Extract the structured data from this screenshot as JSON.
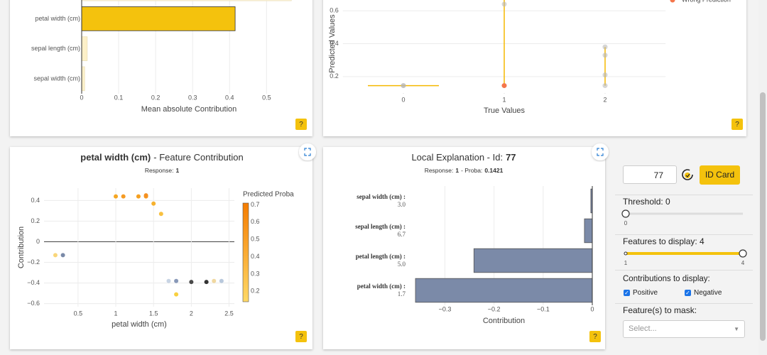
{
  "chart_data": [
    {
      "type": "bar",
      "orientation": "horizontal",
      "categories": [
        null,
        "petal width (cm)",
        "sepal length (cm)",
        "sepal width (cm)"
      ],
      "values": [
        0.567,
        0.415,
        0.015,
        0.008
      ],
      "colors": [
        "#fdf4dc",
        "#f4c20d",
        "#fdf0c8",
        "#fdf0c8"
      ],
      "xlim": [
        0,
        0.58
      ],
      "xticks": [
        0,
        0.1,
        0.2,
        0.3,
        0.4,
        0.5
      ],
      "xlabel": "Mean absolute Contribution",
      "grid": true
    },
    {
      "type": "scatter",
      "xlabel": "True Values",
      "ylabel": "Predicted Values",
      "xlim": [
        -0.6,
        2.6
      ],
      "xticks": [
        0,
        1,
        2
      ],
      "ylim": [
        0.1,
        0.7
      ],
      "yticks": [
        0.2,
        0.4,
        0.6
      ],
      "grid": true,
      "violins": {
        "color": "#f5b800",
        "x": [
          0,
          1,
          2
        ],
        "low": [
          0.145,
          0.145,
          0.145
        ],
        "high": [
          0.145,
          0.7,
          0.38
        ]
      },
      "series": [
        {
          "color": "#b5b5b5",
          "x": [
            0,
            0,
            1,
            2,
            2,
            2,
            2
          ],
          "y": [
            0.145,
            0.145,
            0.64,
            0.38,
            0.33,
            0.21,
            0.145
          ]
        },
        {
          "name": "Wrong Prediction",
          "color": "#f4764b",
          "x": [
            1
          ],
          "y": [
            0.145
          ]
        }
      ]
    },
    {
      "type": "scatter",
      "title": [
        "petal width (cm)",
        "- Feature Contribution"
      ],
      "subtitle": [
        "Response:",
        "1"
      ],
      "xlabel": "petal width (cm)",
      "ylabel": "Contribution",
      "xlim": [
        0.05,
        2.57
      ],
      "xticks": [
        0.5,
        1,
        {
          "value": 1.5,
          "label": "1.5"
        },
        2,
        {
          "value": 2.5,
          "label": "2.5"
        }
      ],
      "ylim": [
        -0.63,
        0.52
      ],
      "yticks": [
        {
          "value": -0.6,
          "label": "−0.6"
        },
        {
          "value": -0.4,
          "label": "−0.4"
        },
        {
          "value": -0.2,
          "label": "−0.2"
        },
        0,
        0.2,
        0.4
      ],
      "grid": true,
      "x": [
        1.0,
        1.1,
        1.3,
        1.4,
        1.4,
        1.5,
        1.6,
        0.2,
        0.3,
        1.7,
        1.8,
        1.8,
        2.0,
        2.2,
        2.3,
        2.4
      ],
      "y": [
        0.44,
        0.44,
        0.44,
        0.44,
        0.45,
        0.37,
        0.27,
        -0.13,
        -0.13,
        -0.38,
        -0.38,
        -0.51,
        -0.39,
        -0.39,
        -0.38,
        -0.38
      ],
      "colors": [
        "#f5a623",
        "#f59b23",
        "#f5a020",
        "#f59b23",
        "#f59020",
        "#f6b12e",
        "#f8c040",
        "#f9d67a",
        "#7a8aa8",
        "#c8d4e4",
        "#8898b8",
        "#f8d040",
        "#4a4a4a",
        "#333333",
        "#f0d8a0",
        "#b8c8dc"
      ],
      "colorbar": {
        "label": "Predicted Proba",
        "lim": [
          0.14,
          0.71
        ],
        "ticks": [
          0.2,
          0.3,
          0.4,
          0.5,
          0.6,
          0.7
        ],
        "colorscale": [
          "#ffd966",
          "#f57c00"
        ]
      }
    },
    {
      "type": "bar",
      "orientation": "horizontal",
      "title": [
        "Local Explanation - Id:",
        "77"
      ],
      "subtitle": [
        "Response:",
        "1",
        "- Proba:",
        "0.1421"
      ],
      "categories": [
        "sepal width (cm) :",
        "sepal length (cm) :",
        "petal length (cm) :",
        "petal width (cm) :"
      ],
      "feature_values": [
        "3.0",
        "6.7",
        "5.0",
        "1.7"
      ],
      "values": [
        -0.003,
        -0.016,
        -0.241,
        -0.36
      ],
      "color": "#7b8aa8",
      "xlim": [
        -0.36,
        0
      ],
      "xticks": [
        {
          "value": -0.3,
          "label": "−0.3"
        },
        {
          "value": -0.2,
          "label": "−0.2"
        },
        {
          "value": -0.1,
          "label": "−0.1"
        },
        0
      ],
      "xlabel": "Contribution",
      "grid": true
    }
  ],
  "help": "?",
  "sidebar": {
    "id_input": "77",
    "id_button": "ID Card",
    "threshold": {
      "label": "Threshold: 0",
      "value": 0,
      "marks": [
        0
      ]
    },
    "features": {
      "label": "Features to display: 4",
      "value": 4,
      "marks": [
        1,
        4
      ]
    },
    "contributions": {
      "label": "Contributions to display:",
      "options": [
        "Positive",
        "Negative"
      ]
    },
    "mask": {
      "label": "Feature(s) to mask:",
      "placeholder": "Select..."
    }
  }
}
